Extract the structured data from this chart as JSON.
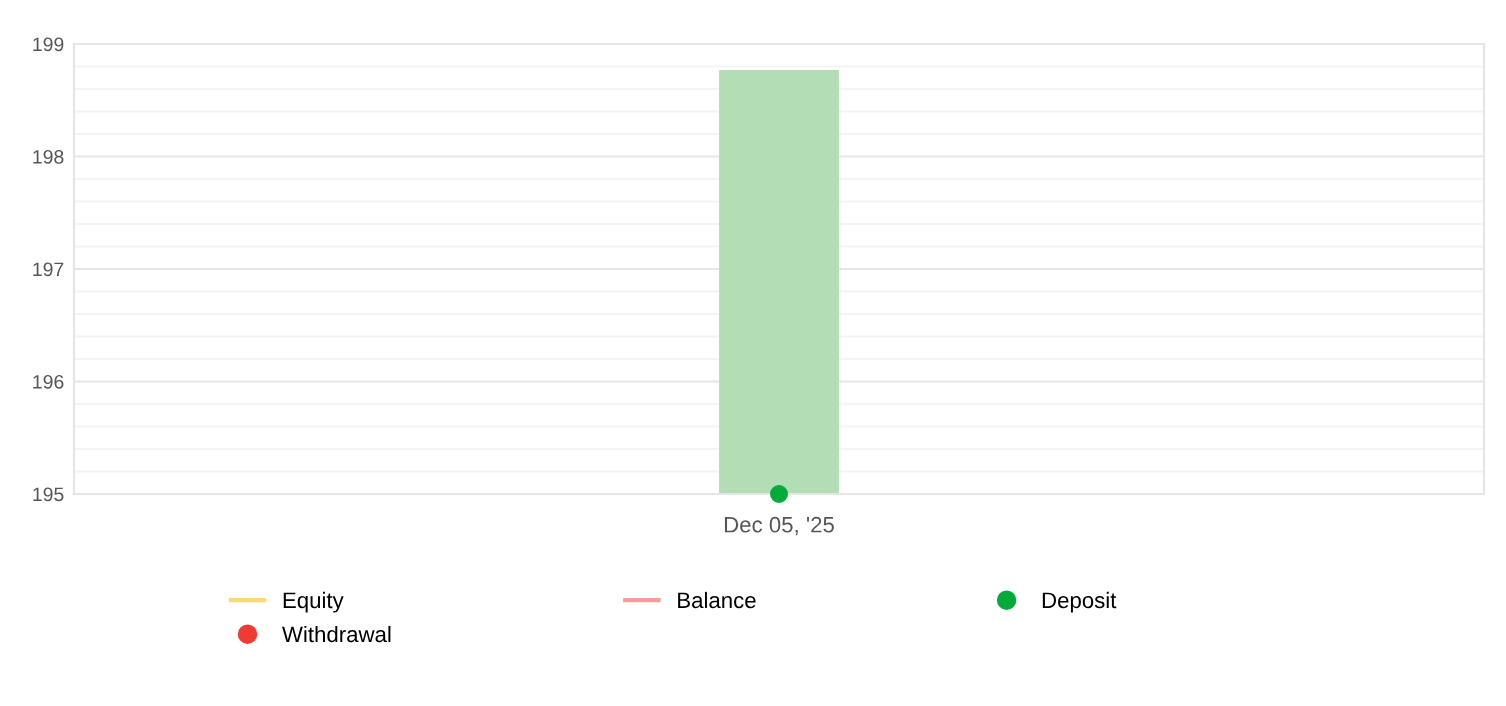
{
  "chart_data": {
    "type": "bar",
    "categories": [
      "Dec 05, '25"
    ],
    "ylim": [
      195,
      199
    ],
    "yticks": [
      195,
      {
        "value": 195.2,
        "label": null
      },
      {
        "value": 195.4,
        "label": null
      },
      {
        "value": 195.6,
        "label": null
      },
      {
        "value": 195.8,
        "label": null
      },
      196,
      {
        "value": 196.2,
        "label": null
      },
      {
        "value": 196.4,
        "label": null
      },
      {
        "value": 196.6,
        "label": null
      },
      {
        "value": 196.8,
        "label": null
      },
      197,
      {
        "value": 197.2,
        "label": null
      },
      {
        "value": 197.4,
        "label": null
      },
      {
        "value": 197.6,
        "label": null
      },
      {
        "value": 197.8,
        "label": null
      },
      198,
      {
        "value": 198.2,
        "label": null
      },
      {
        "value": 198.4,
        "label": null
      },
      {
        "value": 198.6,
        "label": null
      },
      {
        "value": 198.8,
        "label": null
      },
      199
    ],
    "grid": "y",
    "legend": "bottom",
    "series": [
      {
        "color": "#b3deb5",
        "values": [
          3.77
        ],
        "base": [
          195
        ]
      },
      {
        "type": "line",
        "name": "Equity",
        "color": "#fdd87a",
        "values": [
          null
        ]
      },
      {
        "type": "line",
        "name": "Balance",
        "color": "#f4a09a",
        "values": [
          null
        ]
      },
      {
        "type": "scatter",
        "name": "Deposit",
        "color": "#00ab3a",
        "values": [
          195
        ],
        "marker": "circle"
      },
      {
        "type": "scatter",
        "name": "Withdrawal",
        "color": "#ee3b33",
        "values": [
          null
        ],
        "marker": "circle"
      }
    ]
  }
}
